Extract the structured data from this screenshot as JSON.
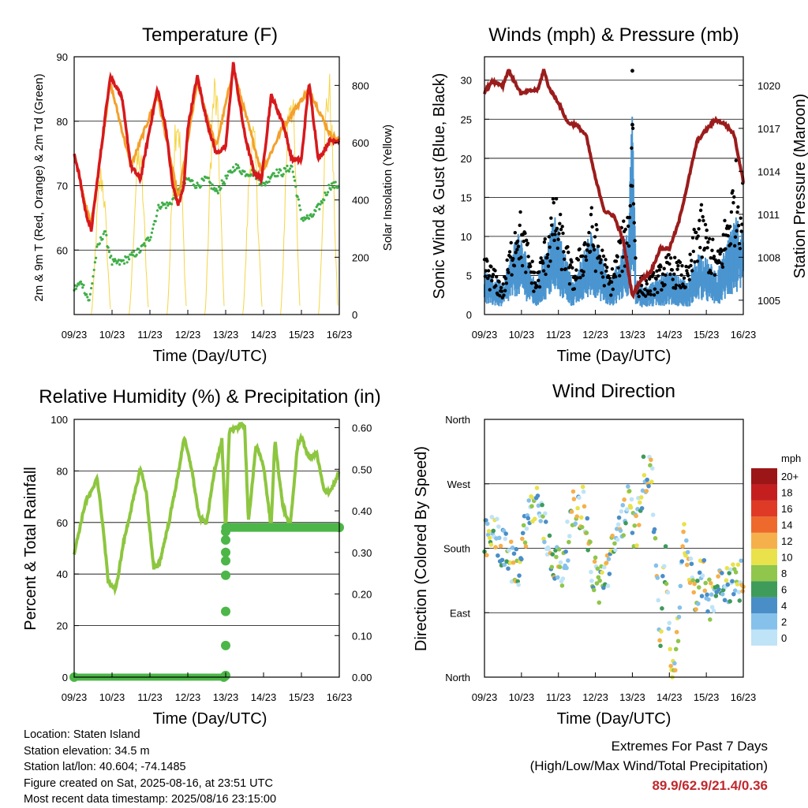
{
  "colors": {
    "temp2m": "#d7191c",
    "temp9m": "#f4a02a",
    "dewpoint": "#3fae49",
    "solar": "#f5d547",
    "wind": "#4a95d0",
    "gust": "#000000",
    "pressure": "#9b1c1c",
    "rh": "#8dc63f",
    "precip": "#4cb648"
  },
  "x_ticks": [
    "09/23",
    "10/23",
    "11/23",
    "12/23",
    "13/23",
    "14/23",
    "15/23",
    "16/23"
  ],
  "panels": {
    "temperature": {
      "title": "Temperature (F)",
      "xlabel": "Time (Day/UTC)",
      "ylabel": "2m & 9m T (Red, Orange) & 2m Td (Green)",
      "y2label": "Solar Insolation (Yellow)",
      "yticks": [
        "60",
        "70",
        "80",
        "90"
      ],
      "y2ticks": [
        "0",
        "200",
        "400",
        "600",
        "800"
      ]
    },
    "winds": {
      "title": "Winds (mph) & Pressure (mb)",
      "xlabel": "Time (Day/UTC)",
      "ylabel": "Sonic Wind & Gust (Blue, Black)",
      "y2label": "Station Pressure (Maroon)",
      "yticks": [
        "0",
        "5",
        "10",
        "15",
        "20",
        "25",
        "30"
      ],
      "y2ticks": [
        "1005",
        "1008",
        "1011",
        "1014",
        "1017",
        "1020"
      ]
    },
    "humidity": {
      "title": "Relative Humidity (%) & Precipitation (in)",
      "xlabel": "Time (Day/UTC)",
      "ylabel": "Percent & Total Rainfall",
      "yticks": [
        "0",
        "20",
        "40",
        "60",
        "80",
        "100"
      ],
      "y2ticks": [
        "0.00",
        "0.10",
        "0.20",
        "0.30",
        "0.40",
        "0.50",
        "0.60"
      ]
    },
    "direction": {
      "title": "Wind Direction",
      "xlabel": "Time (Day/UTC)",
      "ylabel": "Direction (Colored By Speed)",
      "yticks": [
        "North",
        "East",
        "South",
        "West",
        "North"
      ],
      "legend_title": "mph",
      "legend_labels": [
        "0",
        "2",
        "4",
        "6",
        "8",
        "10",
        "12",
        "14",
        "16",
        "18",
        "20+"
      ],
      "legend_colors": [
        "#bfe3f7",
        "#85c1ea",
        "#4a8ec8",
        "#3f9b5a",
        "#8fc64b",
        "#e9e24a",
        "#f5b04b",
        "#ee6a2c",
        "#df3a25",
        "#c41e1f",
        "#9c1517"
      ]
    }
  },
  "chart_data": [
    {
      "type": "line",
      "title": "Temperature (F)",
      "xlabel": "Time (Day/UTC)",
      "ylabel": "2m & 9m T (Red, Orange) & 2m Td (Green)",
      "y2label": "Solar Insolation (Yellow)",
      "x": [
        "09/23",
        "10/23",
        "11/23",
        "12/23",
        "13/23",
        "14/23",
        "15/23",
        "16/23"
      ],
      "ylim": [
        50,
        90
      ],
      "y2lim": [
        0,
        900
      ],
      "series": [
        {
          "name": "2m T",
          "x": [
            0,
            0.12,
            0.3,
            0.45,
            0.7,
            0.95,
            1.25,
            1.5,
            1.75,
            2.0,
            2.2,
            2.42,
            2.6,
            2.75,
            2.9,
            3.0,
            3.25,
            3.5,
            3.75,
            4.0,
            4.2,
            4.5,
            4.75,
            4.95,
            5.2,
            5.5,
            5.75,
            6.0,
            6.2,
            6.45,
            6.75,
            7.0
          ],
          "values": [
            75,
            72,
            66,
            63,
            75,
            87,
            84,
            73,
            71,
            79,
            85,
            79,
            70,
            67,
            70,
            79,
            87,
            80,
            75,
            76,
            89,
            78,
            72,
            71,
            84,
            80,
            74,
            74,
            86,
            74,
            77,
            77
          ]
        },
        {
          "name": "9m T",
          "x": [
            0,
            0.3,
            0.45,
            0.7,
            0.95,
            1.5,
            2.2,
            2.75,
            3.25,
            3.75,
            4.2,
            4.95,
            5.5,
            6.2,
            6.75,
            7.0
          ],
          "values": [
            75,
            67,
            64,
            75,
            86,
            73,
            84,
            68,
            86,
            76,
            88,
            72,
            79,
            85,
            78,
            77
          ]
        },
        {
          "name": "2m Td",
          "x": [
            0,
            0.2,
            0.4,
            0.6,
            0.8,
            1.0,
            1.2,
            1.5,
            1.75,
            2.0,
            2.25,
            2.5,
            2.75,
            3.0,
            3.25,
            3.5,
            3.75,
            4.0,
            4.25,
            4.5,
            4.75,
            5.0,
            5.25,
            5.5,
            5.75,
            6.0,
            6.25,
            6.5,
            6.75,
            7.0
          ],
          "values": [
            54,
            55,
            52,
            60,
            63,
            58,
            58,
            59,
            60,
            62,
            67,
            67,
            69,
            71,
            70,
            71,
            69,
            71,
            73,
            72,
            72,
            70,
            72,
            72,
            73,
            65,
            65,
            67,
            70,
            70
          ]
        },
        {
          "name": "Solar Insolation",
          "axis": "y2",
          "peak_values": [
            360,
            540,
            620,
            780,
            870,
            690,
            880,
            880
          ]
        }
      ]
    },
    {
      "type": "scatter",
      "title": "Winds (mph) & Pressure (mb)",
      "xlabel": "Time (Day/UTC)",
      "ylabel": "Sonic Wind & Gust (Blue, Black)",
      "y2label": "Station Pressure (Maroon)",
      "x": [
        "09/23",
        "10/23",
        "11/23",
        "12/23",
        "13/23",
        "14/23",
        "15/23",
        "16/23"
      ],
      "ylim": [
        0,
        33
      ],
      "y2lim": [
        1004,
        1022
      ],
      "series": [
        {
          "name": "Sonic Wind",
          "x": [
            0,
            0.5,
            0.9,
            1.4,
            1.9,
            2.4,
            2.9,
            3.4,
            3.9,
            4.0,
            4.1,
            4.5,
            5.0,
            5.5,
            5.8,
            6.3,
            6.8,
            7.0
          ],
          "values": [
            4,
            3,
            8,
            3,
            9,
            3,
            8,
            3,
            8,
            21,
            3,
            3,
            4,
            3,
            6,
            4,
            9,
            8
          ]
        },
        {
          "name": "Gust",
          "x": [
            0,
            0.5,
            0.9,
            1.4,
            1.9,
            2.4,
            2.9,
            3.4,
            3.9,
            4.0,
            4.1,
            4.5,
            5.0,
            5.5,
            5.8,
            6.3,
            6.8,
            7.0
          ],
          "values": [
            8,
            4,
            15,
            5,
            16,
            6,
            14,
            5,
            15,
            31,
            5,
            5,
            8,
            6,
            15,
            8,
            20,
            17
          ]
        },
        {
          "name": "Station Pressure",
          "axis": "y2",
          "x": [
            0,
            0.2,
            0.5,
            0.65,
            0.8,
            1.0,
            1.2,
            1.45,
            1.6,
            1.75,
            2.0,
            2.25,
            2.5,
            2.75,
            3.0,
            3.25,
            3.5,
            3.75,
            4.0,
            4.2,
            4.5,
            4.75,
            5.0,
            5.25,
            5.5,
            5.75,
            6.0,
            6.25,
            6.5,
            6.75,
            7.0
          ],
          "values": [
            1019.5,
            1020.3,
            1020.0,
            1021.1,
            1020.3,
            1019.4,
            1019.6,
            1019.7,
            1021.1,
            1019.8,
            1018.8,
            1017.4,
            1017.2,
            1016.5,
            1013.5,
            1011.2,
            1010.9,
            1009.2,
            1005.3,
            1006.3,
            1007.0,
            1008.6,
            1008.6,
            1010.4,
            1013.2,
            1016.1,
            1016.9,
            1017.6,
            1017.3,
            1016.6,
            1013.3
          ]
        }
      ]
    },
    {
      "type": "line",
      "title": "Relative Humidity (%) & Precipitation (in)",
      "xlabel": "Time (Day/UTC)",
      "ylabel": "Percent & Total Rainfall",
      "x": [
        "09/23",
        "10/23",
        "11/23",
        "12/23",
        "13/23",
        "14/23",
        "15/23",
        "16/23"
      ],
      "ylim": [
        0,
        100
      ],
      "y2lim": [
        0,
        0.62
      ],
      "series": [
        {
          "name": "Relative Humidity",
          "x": [
            0,
            0.15,
            0.3,
            0.5,
            0.6,
            0.75,
            0.9,
            1.1,
            1.3,
            1.5,
            1.75,
            1.9,
            2.1,
            2.25,
            2.5,
            2.75,
            2.9,
            3.1,
            3.3,
            3.5,
            3.7,
            3.9,
            4.0,
            4.1,
            4.3,
            4.5,
            4.6,
            4.8,
            5.0,
            5.2,
            5.3,
            5.5,
            5.7,
            5.9,
            6.0,
            6.2,
            6.4,
            6.6,
            6.75,
            6.9,
            7.0
          ],
          "values": [
            48,
            58,
            68,
            73,
            78,
            60,
            37,
            34,
            52,
            65,
            81,
            72,
            42,
            44,
            60,
            79,
            93,
            81,
            62,
            60,
            80,
            92,
            56,
            96,
            97,
            98,
            60,
            90,
            82,
            58,
            92,
            67,
            58,
            90,
            93,
            85,
            87,
            72,
            72,
            76,
            80
          ]
        },
        {
          "name": "Total Precipitation",
          "axis": "y2",
          "x": [
            0,
            3.95,
            4.0,
            4.0,
            4.0,
            4.0,
            4.0,
            4.0,
            4.0,
            4.0,
            4.05,
            7.0
          ],
          "values": [
            0,
            0,
            0.004,
            0.076,
            0.158,
            0.245,
            0.28,
            0.3,
            0.33,
            0.35,
            0.36,
            0.36
          ]
        }
      ]
    },
    {
      "type": "scatter",
      "title": "Wind Direction",
      "xlabel": "Time (Day/UTC)",
      "ylabel": "Direction (Colored By Speed)",
      "x": [
        "09/23",
        "10/23",
        "11/23",
        "12/23",
        "13/23",
        "14/23",
        "15/23",
        "16/23"
      ],
      "yticks": [
        "North",
        "East",
        "South",
        "West",
        "North"
      ],
      "color_scale_mph": [
        "0",
        "2",
        "4",
        "6",
        "8",
        "10",
        "12",
        "14",
        "16",
        "18",
        "20+"
      ],
      "series": [
        {
          "name": "Direction (deg)",
          "x": [
            0,
            0.3,
            0.6,
            0.9,
            1.1,
            1.4,
            1.7,
            1.9,
            2.1,
            2.4,
            2.7,
            2.9,
            3.1,
            3.4,
            3.7,
            3.9,
            4.1,
            4.3,
            4.5,
            4.75,
            4.9,
            5.05,
            5.2,
            5.4,
            5.7,
            5.9,
            6.1,
            6.4,
            6.7,
            7.0
          ],
          "values": [
            190,
            200,
            170,
            150,
            210,
            250,
            190,
            160,
            150,
            230,
            240,
            150,
            130,
            160,
            220,
            240,
            200,
            280,
            300,
            60,
            170,
            10,
            40,
            200,
            120,
            140,
            110,
            140,
            130,
            140
          ]
        }
      ]
    }
  ],
  "footer": {
    "location": "Location: Staten Island",
    "elevation": "Station elevation: 34.5 m",
    "latlon": "Station lat/lon: 40.604; -74.1485",
    "created": "Figure created on Sat, 2025-08-16, at 23:51 UTC",
    "recent": "Most recent data timestamp: 2025/08/16 23:15:00"
  },
  "extremes": {
    "line1": "Extremes For Past 7 Days",
    "line2": "(High/Low/Max Wind/Total Precipitation)",
    "values": "89.9/62.9/21.4/0.36"
  }
}
